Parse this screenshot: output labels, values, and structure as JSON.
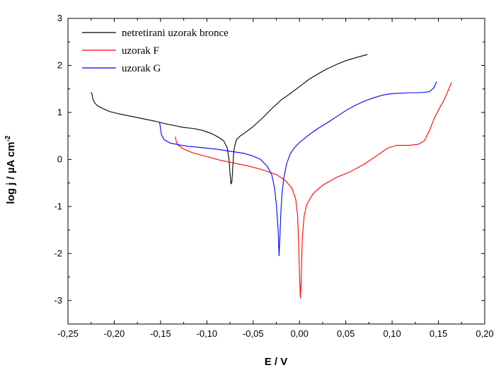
{
  "chart_data": {
    "type": "line",
    "title": "",
    "xlabel": "E / V",
    "ylabel": "log  j / µA cm",
    "ylabel_superscript": "-2",
    "xlim": [
      -0.25,
      0.2
    ],
    "ylim": [
      -3.5,
      3
    ],
    "x_ticks": [
      -0.25,
      -0.2,
      -0.15,
      -0.1,
      -0.05,
      0.0,
      0.05,
      0.1,
      0.15,
      0.2
    ],
    "x_tick_labels": [
      "-0,25",
      "-0,20",
      "-0,15",
      "-0,10",
      "-0,05",
      "0,00",
      "0,05",
      "0,10",
      "0,15",
      "0,20"
    ],
    "y_ticks": [
      -3,
      -2,
      -1,
      0,
      1,
      2,
      3
    ],
    "y_tick_labels": [
      "-3",
      "-2",
      "-1",
      "0",
      "1",
      "2",
      "3"
    ],
    "grid": false,
    "legend_position": "top-left",
    "series": [
      {
        "name": "netretirani uzorak bronce",
        "color": "#000000",
        "points": [
          [
            -0.225,
            1.42
          ],
          [
            -0.224,
            1.4
          ],
          [
            -0.223,
            1.28
          ],
          [
            -0.221,
            1.2
          ],
          [
            -0.218,
            1.14
          ],
          [
            -0.212,
            1.08
          ],
          [
            -0.205,
            1.02
          ],
          [
            -0.195,
            0.97
          ],
          [
            -0.185,
            0.93
          ],
          [
            -0.175,
            0.89
          ],
          [
            -0.165,
            0.85
          ],
          [
            -0.155,
            0.81
          ],
          [
            -0.145,
            0.76
          ],
          [
            -0.135,
            0.72
          ],
          [
            -0.125,
            0.68
          ],
          [
            -0.115,
            0.66
          ],
          [
            -0.105,
            0.62
          ],
          [
            -0.095,
            0.55
          ],
          [
            -0.088,
            0.48
          ],
          [
            -0.082,
            0.4
          ],
          [
            -0.078,
            0.25
          ],
          [
            -0.076,
            0.0
          ],
          [
            -0.075,
            -0.3
          ],
          [
            -0.074,
            -0.52
          ],
          [
            -0.073,
            -0.48
          ],
          [
            -0.072,
            -0.15
          ],
          [
            -0.071,
            0.15
          ],
          [
            -0.07,
            0.28
          ],
          [
            -0.068,
            0.42
          ],
          [
            -0.064,
            0.5
          ],
          [
            -0.058,
            0.58
          ],
          [
            -0.05,
            0.7
          ],
          [
            -0.04,
            0.88
          ],
          [
            -0.03,
            1.08
          ],
          [
            -0.02,
            1.26
          ],
          [
            -0.01,
            1.4
          ],
          [
            0.0,
            1.55
          ],
          [
            0.01,
            1.7
          ],
          [
            0.02,
            1.82
          ],
          [
            0.03,
            1.93
          ],
          [
            0.04,
            2.02
          ],
          [
            0.05,
            2.1
          ],
          [
            0.06,
            2.16
          ],
          [
            0.073,
            2.23
          ]
        ]
      },
      {
        "name": "uzorak F",
        "color": "#ff0000",
        "points": [
          [
            -0.134,
            0.48
          ],
          [
            -0.133,
            0.38
          ],
          [
            -0.131,
            0.3
          ],
          [
            -0.125,
            0.22
          ],
          [
            -0.115,
            0.14
          ],
          [
            -0.1,
            0.06
          ],
          [
            -0.085,
            -0.02
          ],
          [
            -0.07,
            -0.08
          ],
          [
            -0.055,
            -0.14
          ],
          [
            -0.04,
            -0.22
          ],
          [
            -0.025,
            -0.32
          ],
          [
            -0.015,
            -0.45
          ],
          [
            -0.008,
            -0.62
          ],
          [
            -0.004,
            -0.85
          ],
          [
            -0.002,
            -1.2
          ],
          [
            -0.001,
            -1.7
          ],
          [
            0.0,
            -2.4
          ],
          [
            0.001,
            -2.95
          ],
          [
            0.002,
            -2.5
          ],
          [
            0.003,
            -1.7
          ],
          [
            0.005,
            -1.2
          ],
          [
            0.008,
            -0.95
          ],
          [
            0.015,
            -0.72
          ],
          [
            0.025,
            -0.55
          ],
          [
            0.04,
            -0.38
          ],
          [
            0.055,
            -0.26
          ],
          [
            0.07,
            -0.1
          ],
          [
            0.085,
            0.1
          ],
          [
            0.095,
            0.24
          ],
          [
            0.105,
            0.3
          ],
          [
            0.118,
            0.3
          ],
          [
            0.128,
            0.32
          ],
          [
            0.135,
            0.4
          ],
          [
            0.14,
            0.6
          ],
          [
            0.145,
            0.85
          ],
          [
            0.15,
            1.05
          ],
          [
            0.157,
            1.3
          ],
          [
            0.164,
            1.63
          ]
        ]
      },
      {
        "name": "uzorak G",
        "color": "#0000ff",
        "points": [
          [
            -0.151,
            0.78
          ],
          [
            -0.15,
            0.65
          ],
          [
            -0.149,
            0.52
          ],
          [
            -0.146,
            0.42
          ],
          [
            -0.14,
            0.35
          ],
          [
            -0.13,
            0.31
          ],
          [
            -0.12,
            0.28
          ],
          [
            -0.11,
            0.26
          ],
          [
            -0.1,
            0.24
          ],
          [
            -0.09,
            0.22
          ],
          [
            -0.08,
            0.19
          ],
          [
            -0.07,
            0.16
          ],
          [
            -0.06,
            0.13
          ],
          [
            -0.05,
            0.07
          ],
          [
            -0.042,
            0.0
          ],
          [
            -0.035,
            -0.14
          ],
          [
            -0.03,
            -0.32
          ],
          [
            -0.027,
            -0.6
          ],
          [
            -0.025,
            -0.95
          ],
          [
            -0.023,
            -1.5
          ],
          [
            -0.022,
            -2.05
          ],
          [
            -0.021,
            -1.6
          ],
          [
            -0.02,
            -1.1
          ],
          [
            -0.019,
            -0.75
          ],
          [
            -0.017,
            -0.4
          ],
          [
            -0.014,
            -0.1
          ],
          [
            -0.01,
            0.12
          ],
          [
            -0.005,
            0.26
          ],
          [
            0.0,
            0.36
          ],
          [
            0.01,
            0.52
          ],
          [
            0.02,
            0.66
          ],
          [
            0.03,
            0.78
          ],
          [
            0.04,
            0.91
          ],
          [
            0.05,
            1.04
          ],
          [
            0.06,
            1.15
          ],
          [
            0.07,
            1.24
          ],
          [
            0.08,
            1.31
          ],
          [
            0.09,
            1.37
          ],
          [
            0.1,
            1.4
          ],
          [
            0.11,
            1.41
          ],
          [
            0.12,
            1.42
          ],
          [
            0.13,
            1.42
          ],
          [
            0.14,
            1.44
          ],
          [
            0.145,
            1.52
          ],
          [
            0.148,
            1.65
          ]
        ]
      }
    ]
  }
}
